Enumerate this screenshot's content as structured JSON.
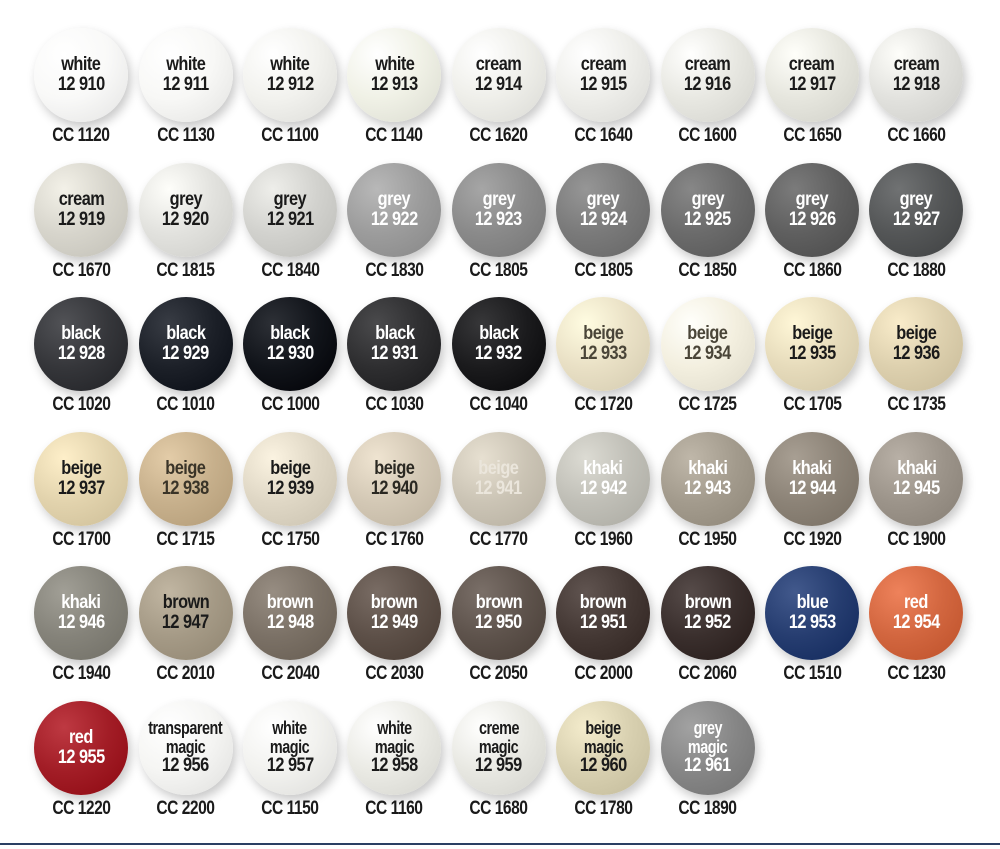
{
  "swatches": [
    {
      "name": [
        "white"
      ],
      "number": "12 910",
      "code": "CC 1120",
      "color": "#f9f9f8",
      "text": "#1a1a1a"
    },
    {
      "name": [
        "white"
      ],
      "number": "12 911",
      "code": "CC 1130",
      "color": "#f8f8f6",
      "text": "#1a1a1a"
    },
    {
      "name": [
        "white"
      ],
      "number": "12 912",
      "code": "CC 1100",
      "color": "#f2f2ee",
      "text": "#1a1a1a"
    },
    {
      "name": [
        "white"
      ],
      "number": "12 913",
      "code": "CC 1140",
      "color": "#f0f1e6",
      "text": "#1a1a1a"
    },
    {
      "name": [
        "cream"
      ],
      "number": "12 914",
      "code": "CC 1620",
      "color": "#efefea",
      "text": "#1a1a1a"
    },
    {
      "name": [
        "cream"
      ],
      "number": "12 915",
      "code": "CC 1640",
      "color": "#eeeeea",
      "text": "#1a1a1a"
    },
    {
      "name": [
        "cream"
      ],
      "number": "12 916",
      "code": "CC 1600",
      "color": "#e8e8e2",
      "text": "#1a1a1a"
    },
    {
      "name": [
        "cream"
      ],
      "number": "12 917",
      "code": "CC 1650",
      "color": "#e6e6de",
      "text": "#1a1a1a"
    },
    {
      "name": [
        "cream"
      ],
      "number": "12 918",
      "code": "CC 1660",
      "color": "#e2e2de",
      "text": "#1a1a1a"
    },
    {
      "name": [
        "cream"
      ],
      "number": "12 919",
      "code": "CC 1670",
      "color": "#d7d5cc",
      "text": "#1a1a1a"
    },
    {
      "name": [
        "grey"
      ],
      "number": "12 920",
      "code": "CC 1815",
      "color": "#e2e2de",
      "text": "#1a1a1a"
    },
    {
      "name": [
        "grey"
      ],
      "number": "12 921",
      "code": "CC 1840",
      "color": "#d2d2ce",
      "text": "#1a1a1a"
    },
    {
      "name": [
        "grey"
      ],
      "number": "12 922",
      "code": "CC 1830",
      "color": "#9c9c9c",
      "text": "#ffffff"
    },
    {
      "name": [
        "grey"
      ],
      "number": "12 923",
      "code": "CC 1805",
      "color": "#8a8a8a",
      "text": "#ffffff"
    },
    {
      "name": [
        "grey"
      ],
      "number": "12 924",
      "code": "CC 1805",
      "color": "#7a7a7a",
      "text": "#ffffff"
    },
    {
      "name": [
        "grey"
      ],
      "number": "12 925",
      "code": "CC 1850",
      "color": "#6b6b6b",
      "text": "#ffffff"
    },
    {
      "name": [
        "grey"
      ],
      "number": "12 926",
      "code": "CC 1860",
      "color": "#5f5f5f",
      "text": "#ffffff"
    },
    {
      "name": [
        "grey"
      ],
      "number": "12 927",
      "code": "CC 1880",
      "color": "#545657",
      "text": "#ffffff"
    },
    {
      "name": [
        "black"
      ],
      "number": "12 928",
      "code": "CC 1020",
      "color": "#35363a",
      "text": "#ffffff"
    },
    {
      "name": [
        "black"
      ],
      "number": "12 929",
      "code": "CC 1010",
      "color": "#1c2028",
      "text": "#ffffff"
    },
    {
      "name": [
        "black"
      ],
      "number": "12 930",
      "code": "CC 1000",
      "color": "#11141a",
      "text": "#ffffff"
    },
    {
      "name": [
        "black"
      ],
      "number": "12 931",
      "code": "CC 1030",
      "color": "#2e2e30",
      "text": "#ffffff"
    },
    {
      "name": [
        "black"
      ],
      "number": "12 932",
      "code": "CC 1040",
      "color": "#1b1b1d",
      "text": "#ffffff"
    },
    {
      "name": [
        "beige"
      ],
      "number": "12 933",
      "code": "CC 1720",
      "color": "#e9e0c5",
      "text": "#4a4538"
    },
    {
      "name": [
        "beige"
      ],
      "number": "12 934",
      "code": "CC 1725",
      "color": "#f3efdf",
      "text": "#4a4538"
    },
    {
      "name": [
        "beige"
      ],
      "number": "12 935",
      "code": "CC 1705",
      "color": "#e6dbbb",
      "text": "#1a1a1a"
    },
    {
      "name": [
        "beige"
      ],
      "number": "12 936",
      "code": "CC 1735",
      "color": "#ddd0ae",
      "text": "#1a1a1a"
    },
    {
      "name": [
        "beige"
      ],
      "number": "12 937",
      "code": "CC 1700",
      "color": "#e2d3ad",
      "text": "#1a1a1a"
    },
    {
      "name": [
        "beige"
      ],
      "number": "12 938",
      "code": "CC 1715",
      "color": "#c7b08c",
      "text": "#3a3428"
    },
    {
      "name": [
        "beige"
      ],
      "number": "12 939",
      "code": "CC 1750",
      "color": "#dfd7c5",
      "text": "#1a1a1a"
    },
    {
      "name": [
        "beige"
      ],
      "number": "12 940",
      "code": "CC 1760",
      "color": "#d3c8b5",
      "text": "#2a2822"
    },
    {
      "name": [
        "beige"
      ],
      "number": "12 941",
      "code": "CC 1770",
      "color": "#cbc4b5",
      "text": "#ebe6dc"
    },
    {
      "name": [
        "khaki"
      ],
      "number": "12 942",
      "code": "CC 1960",
      "color": "#c0bfb7",
      "text": "#ffffff"
    },
    {
      "name": [
        "khaki"
      ],
      "number": "12 943",
      "code": "CC 1950",
      "color": "#a39b8d",
      "text": "#ffffff"
    },
    {
      "name": [
        "khaki"
      ],
      "number": "12 944",
      "code": "CC 1920",
      "color": "#8c8377",
      "text": "#ffffff"
    },
    {
      "name": [
        "khaki"
      ],
      "number": "12 945",
      "code": "CC 1900",
      "color": "#9c948a",
      "text": "#ffffff"
    },
    {
      "name": [
        "khaki"
      ],
      "number": "12 946",
      "code": "CC 1940",
      "color": "#85837a",
      "text": "#ffffff"
    },
    {
      "name": [
        "brown"
      ],
      "number": "12 947",
      "code": "CC 2010",
      "color": "#a59a86",
      "text": "#1a1a1a"
    },
    {
      "name": [
        "brown"
      ],
      "number": "12 948",
      "code": "CC 2040",
      "color": "#7b7166",
      "text": "#ffffff"
    },
    {
      "name": [
        "brown"
      ],
      "number": "12 949",
      "code": "CC 2030",
      "color": "#5d5048",
      "text": "#ffffff"
    },
    {
      "name": [
        "brown"
      ],
      "number": "12 950",
      "code": "CC 2050",
      "color": "#5e534c",
      "text": "#ffffff"
    },
    {
      "name": [
        "brown"
      ],
      "number": "12 951",
      "code": "CC 2000",
      "color": "#443834",
      "text": "#ffffff"
    },
    {
      "name": [
        "brown"
      ],
      "number": "12 952",
      "code": "CC 2060",
      "color": "#3a2f2d",
      "text": "#ffffff"
    },
    {
      "name": [
        "blue"
      ],
      "number": "12 953",
      "code": "CC 1510",
      "color": "#263d70",
      "text": "#ffffff"
    },
    {
      "name": [
        "red"
      ],
      "number": "12 954",
      "code": "CC 1230",
      "color": "#d2663f",
      "text": "#ffffff"
    },
    {
      "name": [
        "red"
      ],
      "number": "12 955",
      "code": "CC 1220",
      "color": "#a21d26",
      "text": "#ffffff"
    },
    {
      "name": [
        "transparent",
        "magic"
      ],
      "number": "12 956",
      "code": "CC 2200",
      "color": "#f5f5f3",
      "text": "#1a1a1a"
    },
    {
      "name": [
        "white",
        "magic"
      ],
      "number": "12 957",
      "code": "CC 1150",
      "color": "#f2f2ef",
      "text": "#1a1a1a"
    },
    {
      "name": [
        "white",
        "magic"
      ],
      "number": "12 958",
      "code": "CC 1160",
      "color": "#eaeae4",
      "text": "#1a1a1a"
    },
    {
      "name": [
        "creme",
        "magic"
      ],
      "number": "12 959",
      "code": "CC 1680",
      "color": "#e8e8e2",
      "text": "#1a1a1a"
    },
    {
      "name": [
        "beige",
        "magic"
      ],
      "number": "12 960",
      "code": "CC 1780",
      "color": "#d8d0b0",
      "text": "#1a1a1a"
    },
    {
      "name": [
        "grey",
        "magic"
      ],
      "number": "12 961",
      "code": "CC 1890",
      "color": "#868686",
      "text": "#ffffff"
    }
  ]
}
